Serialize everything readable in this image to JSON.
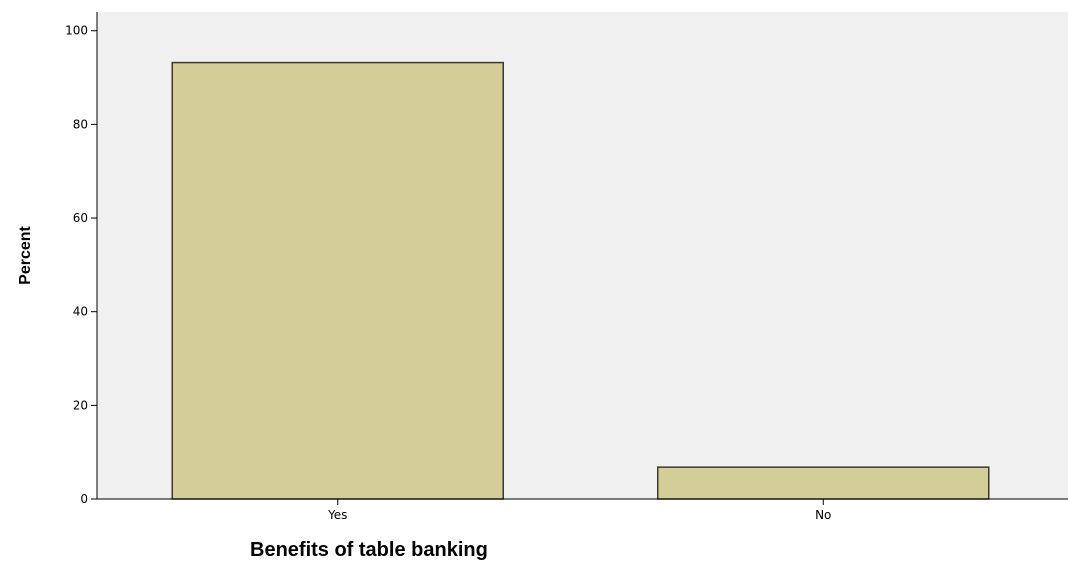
{
  "chart_data": {
    "type": "bar",
    "categories": [
      "Yes",
      "No"
    ],
    "values": [
      93.2,
      6.8
    ],
    "xlabel": "Benefits of table banking",
    "ylabel": "Percent",
    "ylim": [
      0,
      104
    ],
    "yticks": [
      0,
      20,
      40,
      60,
      80,
      100
    ],
    "grid": false,
    "colors": {
      "plot_background": "#f0f0f0",
      "bar_fill": "#d3cd97",
      "bar_stroke": "#3a3a32"
    }
  }
}
